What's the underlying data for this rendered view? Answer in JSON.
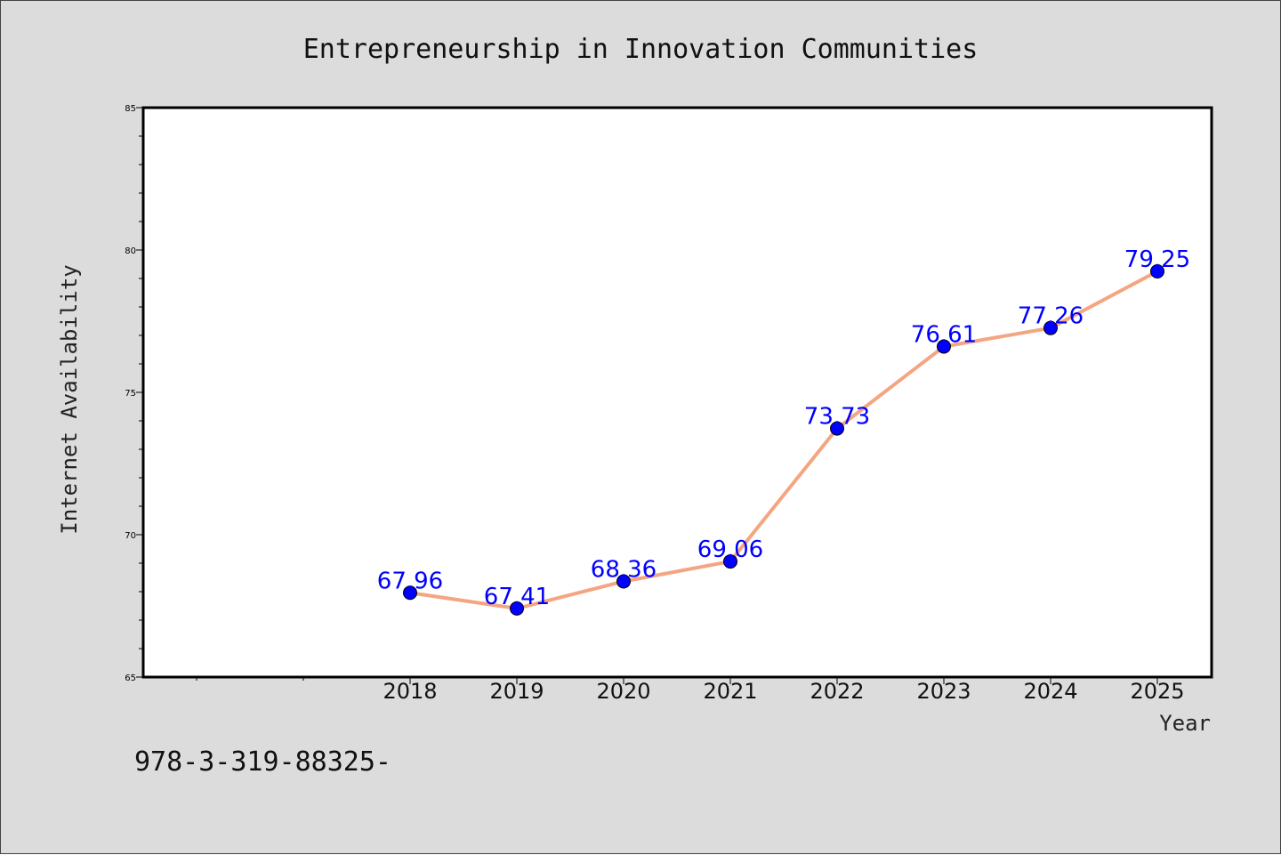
{
  "chart_data": {
    "type": "line",
    "title": "Entrepreneurship in Innovation Communities",
    "xlabel": "Year",
    "ylabel": "Internet Availability",
    "x": [
      "2018",
      "2019",
      "2020",
      "2021",
      "2022",
      "2023",
      "2024",
      "2025"
    ],
    "series": [
      {
        "values": [
          67.96,
          67.41,
          68.36,
          69.06,
          73.73,
          76.61,
          77.26,
          79.25
        ],
        "labels": [
          "67.96",
          "67.41",
          "68.36",
          "69.06",
          "73.73",
          "76.61",
          "77.26",
          "79.25"
        ],
        "line_color": "#f4a582",
        "marker_color": "#0000ff",
        "label_color": "#0000ff"
      }
    ],
    "ylim": [
      65,
      85
    ],
    "yticks": [
      "65",
      "70",
      "75",
      "80",
      "85"
    ],
    "grid": false,
    "legend": "none",
    "background": "#dcdcdc",
    "plot_background": "#ffffff"
  },
  "footer": {
    "text": "978-3-319-88325-"
  }
}
